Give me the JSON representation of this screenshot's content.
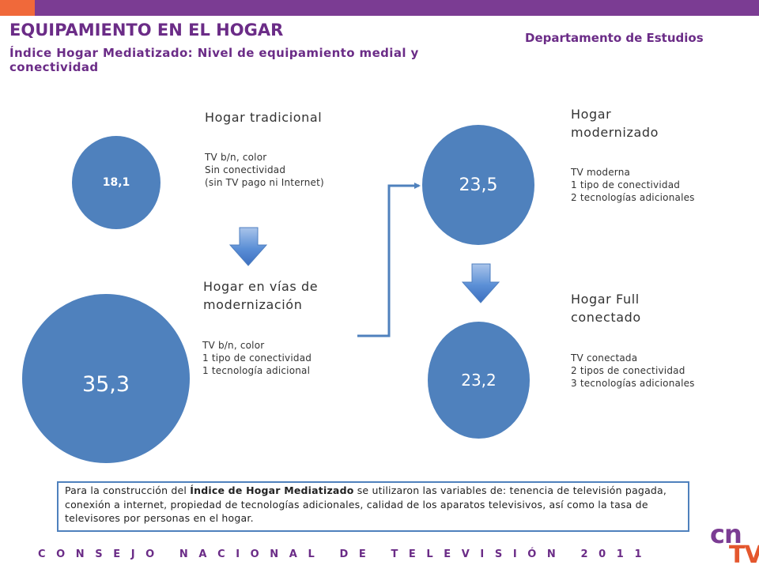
{
  "header": {
    "title": "EQUIPAMIENTO EN EL HOGAR",
    "subtitle": "Índice Hogar Mediatizado: Nivel de equipamiento medial y conectividad",
    "department": "Departamento de Estudios"
  },
  "diagram": {
    "nodes": [
      {
        "id": "tradicional",
        "value": "18,1",
        "heading": [
          "Hogar tradicional"
        ],
        "details": [
          "TV b/n, color",
          "Sin conectividad",
          "(sin TV pago ni Internet)"
        ]
      },
      {
        "id": "vias",
        "value": "35,3",
        "heading": [
          "Hogar en vías de",
          "modernización"
        ],
        "details": [
          "TV b/n, color",
          "1 tipo de conectividad",
          "1 tecnología adicional"
        ]
      },
      {
        "id": "modernizado",
        "value": "23,5",
        "heading": [
          "Hogar",
          "modernizado"
        ],
        "details": [
          "TV moderna",
          "1 tipo de conectividad",
          "2 tecnologías adicionales"
        ]
      },
      {
        "id": "full",
        "value": "23,2",
        "heading": [
          "Hogar Full",
          "conectado"
        ],
        "details": [
          "TV conectada",
          "2 tipos de conectividad",
          "3 tecnologías adicionales"
        ]
      }
    ],
    "colors": {
      "circle": "#4f81bd",
      "arrow": "#4f81bd",
      "header": "#6b2c87",
      "topbar": "#7b3c93",
      "accent": "#f0693a"
    }
  },
  "note": {
    "before": "Para la construcción del ",
    "bold": "Índice de Hogar Mediatizado",
    "after": " se utilizaron las variables de: tenencia de televisión pagada, conexión a internet, propiedad de tecnologías adicionales, calidad de los aparatos televisivos, así como la tasa de televisores por personas en el hogar."
  },
  "footer": {
    "text": "CONSEJO NACIONAL DE TELEVISIÓN 2011"
  },
  "logo": {
    "top": "cn",
    "bottom": "TV"
  }
}
